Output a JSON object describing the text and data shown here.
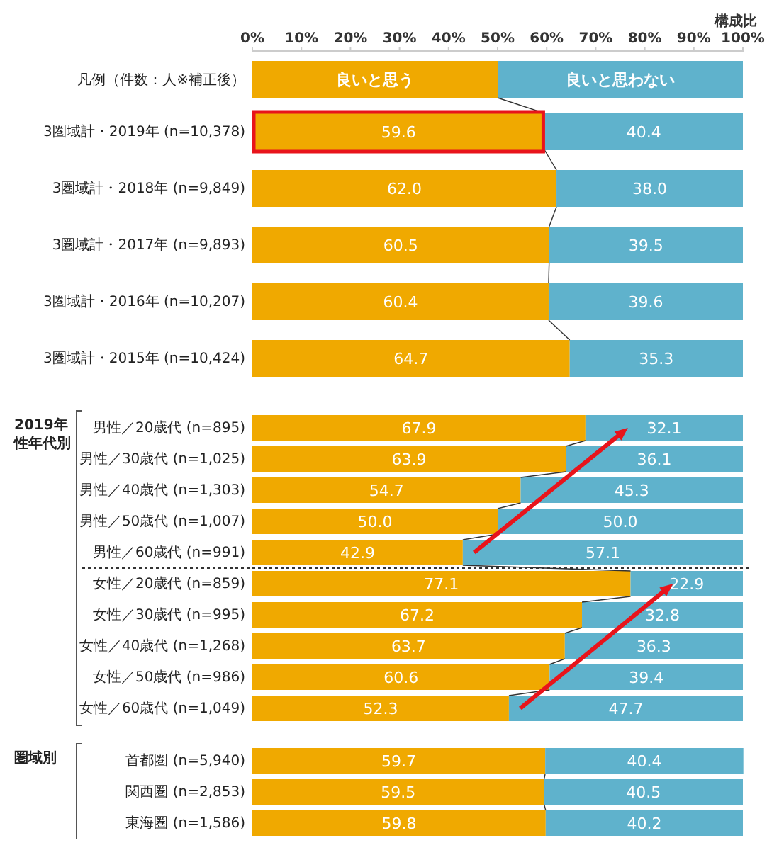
{
  "chart_data": [
    {
      "type": "bar",
      "orientation": "horizontal",
      "stacked": true,
      "xlabel": "構成比",
      "legend_title": "凡例（件数：人※補正後）",
      "legend": "top",
      "categories": [
        "3圏域計・2019年 (n=10,378)",
        "3圏域計・2018年 (n=9,849)",
        "3圏域計・2017年 (n=9,893)",
        "3圏域計・2016年 (n=10,207)",
        "3圏域計・2015年 (n=10,424)"
      ],
      "series": [
        {
          "name": "良いと思う",
          "color": "#f0a900",
          "values": [
            59.6,
            62.0,
            60.5,
            60.4,
            64.7
          ],
          "value_labels": [
            "59.6",
            "62.0",
            "60.5",
            "60.4",
            "64.7"
          ]
        },
        {
          "name": "良いと思わない",
          "color": "#5fb2cc",
          "values": [
            40.4,
            38.0,
            39.5,
            39.6,
            35.3
          ],
          "value_labels": [
            "40.4",
            "38.0",
            "39.5",
            "39.6",
            "35.3"
          ]
        }
      ],
      "xlim": [
        0,
        100
      ],
      "xticks": [
        {
          "value": 0,
          "label": "0%"
        },
        {
          "value": 10,
          "label": "10%"
        },
        {
          "value": 20,
          "label": "20%"
        },
        {
          "value": 30,
          "label": "30%"
        },
        {
          "value": 40,
          "label": "40%"
        },
        {
          "value": 50,
          "label": "50%"
        },
        {
          "value": 60,
          "label": "60%"
        },
        {
          "value": 70,
          "label": "70%"
        },
        {
          "value": 80,
          "label": "80%"
        },
        {
          "value": 90,
          "label": "90%"
        },
        {
          "value": 100,
          "label": "100%"
        }
      ]
    },
    {
      "type": "bar",
      "orientation": "horizontal",
      "stacked": true,
      "tick_labels": "y",
      "xlim": [
        0,
        100
      ],
      "categories": [
        "男性／20歳代 (n=895)",
        "男性／30歳代 (n=1,025)",
        "男性／40歳代 (n=1,303)",
        "男性／50歳代 (n=1,007)",
        "男性／60歳代 (n=991)",
        "女性／20歳代 (n=859)",
        "女性／30歳代 (n=995)",
        "女性／40歳代 (n=1,268)",
        "女性／50歳代 (n=986)",
        "女性／60歳代 (n=1,049)"
      ],
      "series": [
        {
          "color": "#f0a900",
          "values": [
            67.9,
            63.9,
            54.7,
            50.0,
            42.9,
            77.1,
            67.2,
            63.7,
            60.6,
            52.3
          ],
          "value_labels": [
            "67.9",
            "63.9",
            "54.7",
            "50.0",
            "42.9",
            "77.1",
            "67.2",
            "63.7",
            "60.6",
            "52.3"
          ]
        },
        {
          "color": "#5fb2cc",
          "values": [
            32.1,
            36.1,
            45.3,
            50.0,
            57.1,
            22.9,
            32.8,
            36.3,
            39.4,
            47.7
          ],
          "value_labels": [
            "32.1",
            "36.1",
            "45.3",
            "50.0",
            "57.1",
            "22.9",
            "32.8",
            "36.3",
            "39.4",
            "47.7"
          ]
        }
      ],
      "annotations": [
        "2019年性年代別"
      ]
    },
    {
      "type": "bar",
      "orientation": "horizontal",
      "stacked": true,
      "tick_labels": "y",
      "xlim": [
        0,
        100
      ],
      "categories": [
        "首都圏 (n=5,940)",
        "関西圏 (n=2,853)",
        "東海圏 (n=1,586)"
      ],
      "series": [
        {
          "color": "#f0a900",
          "values": [
            59.7,
            59.5,
            59.8
          ],
          "value_labels": [
            "59.7",
            "59.5",
            "59.8"
          ]
        },
        {
          "color": "#5fb2cc",
          "values": [
            40.4,
            40.5,
            40.2
          ],
          "value_labels": [
            "40.4",
            "40.5",
            "40.2"
          ]
        }
      ],
      "annotations": [
        "圏域別"
      ]
    }
  ]
}
